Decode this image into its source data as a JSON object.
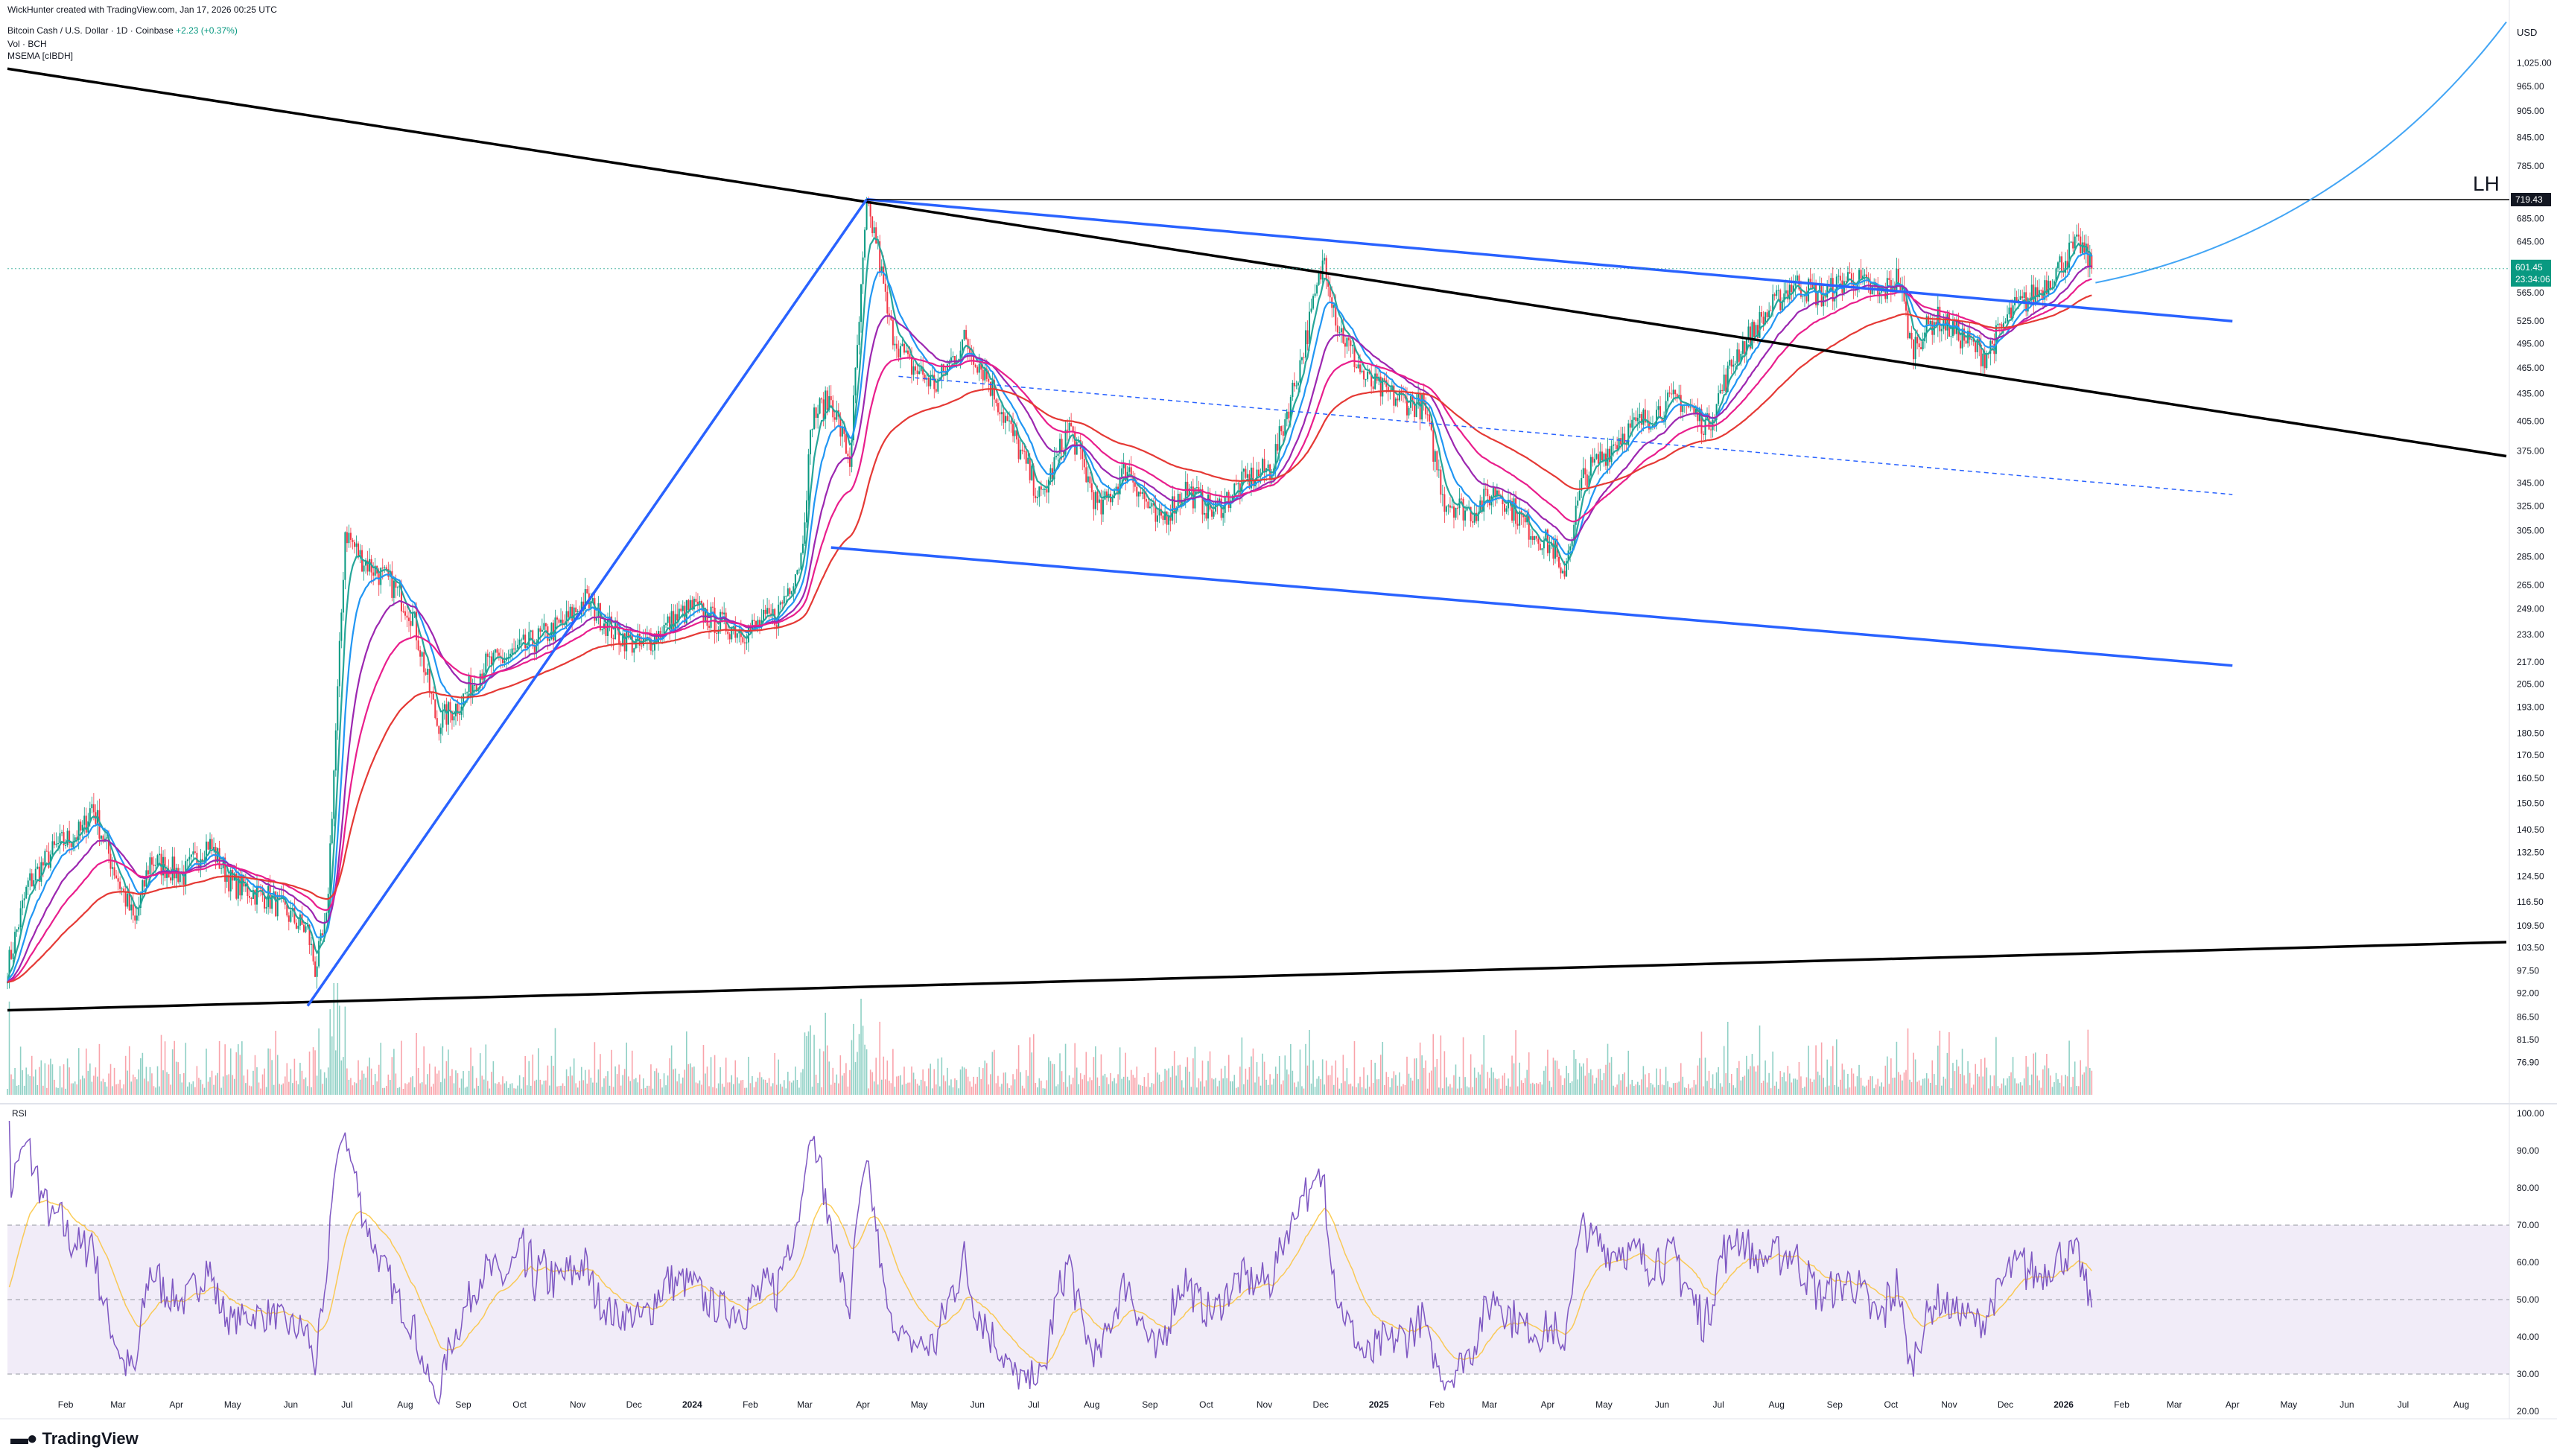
{
  "header": {
    "credit": "WickHunter created with TradingView.com, Jan 17, 2026 00:25 UTC",
    "symbol": "Bitcoin Cash / U.S. Dollar · 1D · Coinbase",
    "change": "+2.23 (+0.37%)",
    "vol_label": "Vol · BCH",
    "indicator_label": "MSEMA [cIBDH]"
  },
  "rsi_pane": {
    "label": "RSI"
  },
  "brand": {
    "name": "TradingView"
  },
  "colors": {
    "up": "#089981",
    "down": "#f23645",
    "ema_fast_1": "#26a69a",
    "ema_fast_2": "#2196f3",
    "ema_mid": "#9c27b0",
    "ema_slow_1": "#e91e8c",
    "ema_slow_2": "#e53935",
    "trend_black": "#000000",
    "channel_blue": "#2962ff",
    "rsi_line": "#7e57c2",
    "rsi_ma": "#fbc02d",
    "rsi_band": "#ede7f6",
    "price_badge": "#089981"
  },
  "chart_data": {
    "type": "candlestick",
    "price_axis": {
      "unit": "USD",
      "scale": "log",
      "range": [
        70,
        1150
      ],
      "ticks": [
        "1,025.00",
        "965.00",
        "905.00",
        "845.00",
        "785.00",
        "685.00",
        "645.00",
        "565.00",
        "525.00",
        "495.00",
        "465.00",
        "435.00",
        "405.00",
        "375.00",
        "345.00",
        "325.00",
        "305.00",
        "285.00",
        "265.00",
        "249.00",
        "233.00",
        "217.00",
        "205.00",
        "193.00",
        "180.50",
        "170.50",
        "160.50",
        "150.50",
        "140.50",
        "132.50",
        "124.50",
        "116.50",
        "109.50",
        "103.50",
        "97.50",
        "92.00",
        "86.50",
        "81.50",
        "76.90"
      ]
    },
    "time_axis": {
      "range": [
        "2023-01-01",
        "2026-08-25"
      ],
      "ticks": [
        {
          "label": "Feb",
          "date": "2023-02-01"
        },
        {
          "label": "Mar",
          "date": "2023-03-01"
        },
        {
          "label": "Apr",
          "date": "2023-04-01"
        },
        {
          "label": "May",
          "date": "2023-05-01"
        },
        {
          "label": "Jun",
          "date": "2023-06-01"
        },
        {
          "label": "Jul",
          "date": "2023-07-01"
        },
        {
          "label": "Aug",
          "date": "2023-08-01"
        },
        {
          "label": "Sep",
          "date": "2023-09-01"
        },
        {
          "label": "Oct",
          "date": "2023-10-01"
        },
        {
          "label": "Nov",
          "date": "2023-11-01"
        },
        {
          "label": "Dec",
          "date": "2023-12-01"
        },
        {
          "label": "2024",
          "date": "2024-01-01"
        },
        {
          "label": "Feb",
          "date": "2024-02-01"
        },
        {
          "label": "Mar",
          "date": "2024-03-01"
        },
        {
          "label": "Apr",
          "date": "2024-04-01"
        },
        {
          "label": "May",
          "date": "2024-05-01"
        },
        {
          "label": "Jun",
          "date": "2024-06-01"
        },
        {
          "label": "Jul",
          "date": "2024-07-01"
        },
        {
          "label": "Aug",
          "date": "2024-08-01"
        },
        {
          "label": "Sep",
          "date": "2024-09-01"
        },
        {
          "label": "Oct",
          "date": "2024-10-01"
        },
        {
          "label": "Nov",
          "date": "2024-11-01"
        },
        {
          "label": "Dec",
          "date": "2024-12-01"
        },
        {
          "label": "2025",
          "date": "2025-01-01"
        },
        {
          "label": "Feb",
          "date": "2025-02-01"
        },
        {
          "label": "Mar",
          "date": "2025-03-01"
        },
        {
          "label": "Apr",
          "date": "2025-04-01"
        },
        {
          "label": "May",
          "date": "2025-05-01"
        },
        {
          "label": "Jun",
          "date": "2025-06-01"
        },
        {
          "label": "Jul",
          "date": "2025-07-01"
        },
        {
          "label": "Aug",
          "date": "2025-08-01"
        },
        {
          "label": "Sep",
          "date": "2025-09-01"
        },
        {
          "label": "Oct",
          "date": "2025-10-01"
        },
        {
          "label": "Nov",
          "date": "2025-11-01"
        },
        {
          "label": "Dec",
          "date": "2025-12-01"
        },
        {
          "label": "2026",
          "date": "2026-01-01"
        },
        {
          "label": "Feb",
          "date": "2026-02-01"
        },
        {
          "label": "Mar",
          "date": "2026-03-01"
        },
        {
          "label": "Apr",
          "date": "2026-04-01"
        },
        {
          "label": "May",
          "date": "2026-05-01"
        },
        {
          "label": "Jun",
          "date": "2026-06-01"
        },
        {
          "label": "Jul",
          "date": "2026-07-01"
        },
        {
          "label": "Aug",
          "date": "2026-08-01"
        }
      ]
    },
    "price_path": [
      {
        "date": "2023-01-01",
        "close": 98
      },
      {
        "date": "2023-01-12",
        "close": 122
      },
      {
        "date": "2023-01-28",
        "close": 135
      },
      {
        "date": "2023-02-10",
        "close": 140
      },
      {
        "date": "2023-02-15",
        "close": 150
      },
      {
        "date": "2023-02-25",
        "close": 130
      },
      {
        "date": "2023-03-10",
        "close": 110
      },
      {
        "date": "2023-03-18",
        "close": 130
      },
      {
        "date": "2023-04-05",
        "close": 125
      },
      {
        "date": "2023-04-18",
        "close": 136
      },
      {
        "date": "2023-05-01",
        "close": 122
      },
      {
        "date": "2023-05-20",
        "close": 118
      },
      {
        "date": "2023-06-10",
        "close": 108
      },
      {
        "date": "2023-06-14",
        "close": 98
      },
      {
        "date": "2023-06-20",
        "close": 110
      },
      {
        "date": "2023-06-26",
        "close": 200
      },
      {
        "date": "2023-06-30",
        "close": 305
      },
      {
        "date": "2023-07-08",
        "close": 285
      },
      {
        "date": "2023-07-25",
        "close": 265
      },
      {
        "date": "2023-08-05",
        "close": 245
      },
      {
        "date": "2023-08-18",
        "close": 185
      },
      {
        "date": "2023-08-30",
        "close": 195
      },
      {
        "date": "2023-09-12",
        "close": 215
      },
      {
        "date": "2023-09-25",
        "close": 220
      },
      {
        "date": "2023-10-10",
        "close": 230
      },
      {
        "date": "2023-10-25",
        "close": 240
      },
      {
        "date": "2023-11-05",
        "close": 255
      },
      {
        "date": "2023-11-20",
        "close": 235
      },
      {
        "date": "2023-12-05",
        "close": 225
      },
      {
        "date": "2023-12-20",
        "close": 240
      },
      {
        "date": "2024-01-01",
        "close": 250
      },
      {
        "date": "2024-01-15",
        "close": 240
      },
      {
        "date": "2024-01-30",
        "close": 235
      },
      {
        "date": "2024-02-15",
        "close": 245
      },
      {
        "date": "2024-02-28",
        "close": 285
      },
      {
        "date": "2024-03-05",
        "close": 410
      },
      {
        "date": "2024-03-15",
        "close": 430
      },
      {
        "date": "2024-03-25",
        "close": 365
      },
      {
        "date": "2024-04-03",
        "close": 700
      },
      {
        "date": "2024-04-08",
        "close": 650
      },
      {
        "date": "2024-04-15",
        "close": 520
      },
      {
        "date": "2024-04-25",
        "close": 470
      },
      {
        "date": "2024-05-10",
        "close": 445
      },
      {
        "date": "2024-05-25",
        "close": 500
      },
      {
        "date": "2024-06-05",
        "close": 460
      },
      {
        "date": "2024-06-20",
        "close": 390
      },
      {
        "date": "2024-07-05",
        "close": 330
      },
      {
        "date": "2024-07-20",
        "close": 400
      },
      {
        "date": "2024-08-05",
        "close": 320
      },
      {
        "date": "2024-08-20",
        "close": 360
      },
      {
        "date": "2024-09-05",
        "close": 310
      },
      {
        "date": "2024-09-20",
        "close": 340
      },
      {
        "date": "2024-10-05",
        "close": 320
      },
      {
        "date": "2024-10-20",
        "close": 345
      },
      {
        "date": "2024-11-05",
        "close": 360
      },
      {
        "date": "2024-11-20",
        "close": 470
      },
      {
        "date": "2024-12-03",
        "close": 620
      },
      {
        "date": "2024-12-10",
        "close": 520
      },
      {
        "date": "2024-12-25",
        "close": 450
      },
      {
        "date": "2025-01-10",
        "close": 430
      },
      {
        "date": "2025-01-25",
        "close": 420
      },
      {
        "date": "2025-02-05",
        "close": 330
      },
      {
        "date": "2025-02-20",
        "close": 320
      },
      {
        "date": "2025-03-05",
        "close": 340
      },
      {
        "date": "2025-03-20",
        "close": 310
      },
      {
        "date": "2025-04-05",
        "close": 290
      },
      {
        "date": "2025-04-08",
        "close": 265
      },
      {
        "date": "2025-04-20",
        "close": 350
      },
      {
        "date": "2025-05-10",
        "close": 390
      },
      {
        "date": "2025-05-25",
        "close": 410
      },
      {
        "date": "2025-06-10",
        "close": 430
      },
      {
        "date": "2025-06-25",
        "close": 400
      },
      {
        "date": "2025-07-10",
        "close": 480
      },
      {
        "date": "2025-07-25",
        "close": 530
      },
      {
        "date": "2025-08-10",
        "close": 580
      },
      {
        "date": "2025-08-25",
        "close": 560
      },
      {
        "date": "2025-09-10",
        "close": 590
      },
      {
        "date": "2025-09-25",
        "close": 560
      },
      {
        "date": "2025-10-05",
        "close": 590
      },
      {
        "date": "2025-10-12",
        "close": 490
      },
      {
        "date": "2025-10-25",
        "close": 530
      },
      {
        "date": "2025-11-10",
        "close": 500
      },
      {
        "date": "2025-11-20",
        "close": 480
      },
      {
        "date": "2025-12-05",
        "close": 540
      },
      {
        "date": "2025-12-20",
        "close": 570
      },
      {
        "date": "2026-01-05",
        "close": 630
      },
      {
        "date": "2026-01-10",
        "close": 640
      },
      {
        "date": "2026-01-16",
        "close": 601.45
      }
    ],
    "series": [
      {
        "kind": "ema",
        "color": "#26a69a",
        "smoothing": 0.25
      },
      {
        "kind": "ema",
        "color": "#2196f3",
        "smoothing": 0.12
      },
      {
        "kind": "ema",
        "color": "#9c27b0",
        "smoothing": 0.06
      },
      {
        "kind": "ema",
        "color": "#e91e8c",
        "smoothing": 0.035
      },
      {
        "kind": "ema",
        "color": "#e53935",
        "smoothing": 0.018
      }
    ],
    "trendlines": [
      {
        "name": "descending-black",
        "color": "#000000",
        "points": [
          {
            "date": "2023-01-01",
            "price": 1010
          },
          {
            "date": "2026-08-25",
            "price": 370
          }
        ]
      },
      {
        "name": "ascending-black",
        "color": "#000000",
        "points": [
          {
            "date": "2023-01-01",
            "price": 88
          },
          {
            "date": "2026-08-25",
            "price": 105
          }
        ]
      },
      {
        "name": "rise-blue",
        "color": "#2962ff",
        "points": [
          {
            "date": "2023-06-10",
            "price": 89
          },
          {
            "date": "2024-04-03",
            "price": 720
          }
        ]
      },
      {
        "name": "channel-top-blue",
        "color": "#2962ff",
        "points": [
          {
            "date": "2024-04-03",
            "price": 720
          },
          {
            "date": "2026-04-01",
            "price": 525
          }
        ]
      },
      {
        "name": "channel-bottom-blue",
        "color": "#2962ff",
        "points": [
          {
            "date": "2024-03-15",
            "price": 292
          },
          {
            "date": "2026-04-01",
            "price": 215
          }
        ]
      },
      {
        "name": "channel-mid-dashed",
        "color": "#2962ff",
        "dashed": true,
        "points": [
          {
            "date": "2024-04-20",
            "price": 455
          },
          {
            "date": "2026-04-01",
            "price": 335
          }
        ]
      }
    ],
    "horizontal_level": {
      "price": 719.43,
      "label": "719.43",
      "annotation": "LH"
    },
    "projection_arc": {
      "color": "#42a5f5",
      "points": [
        {
          "date": "2026-01-18",
          "price": 580
        },
        {
          "date": "2026-04-15",
          "price": 630
        },
        {
          "date": "2026-07-01",
          "price": 800
        },
        {
          "date": "2026-08-25",
          "price": 1140
        }
      ]
    },
    "last_price": {
      "value": 601.45,
      "label": "601.45",
      "countdown": "23:34:06"
    },
    "rsi": {
      "range": [
        20,
        100
      ],
      "ticks": [
        "100.00",
        "90.00",
        "80.00",
        "70.00",
        "60.00",
        "50.00",
        "40.00",
        "30.00",
        "20.00"
      ],
      "band": [
        30,
        70
      ],
      "midline": 50
    }
  }
}
